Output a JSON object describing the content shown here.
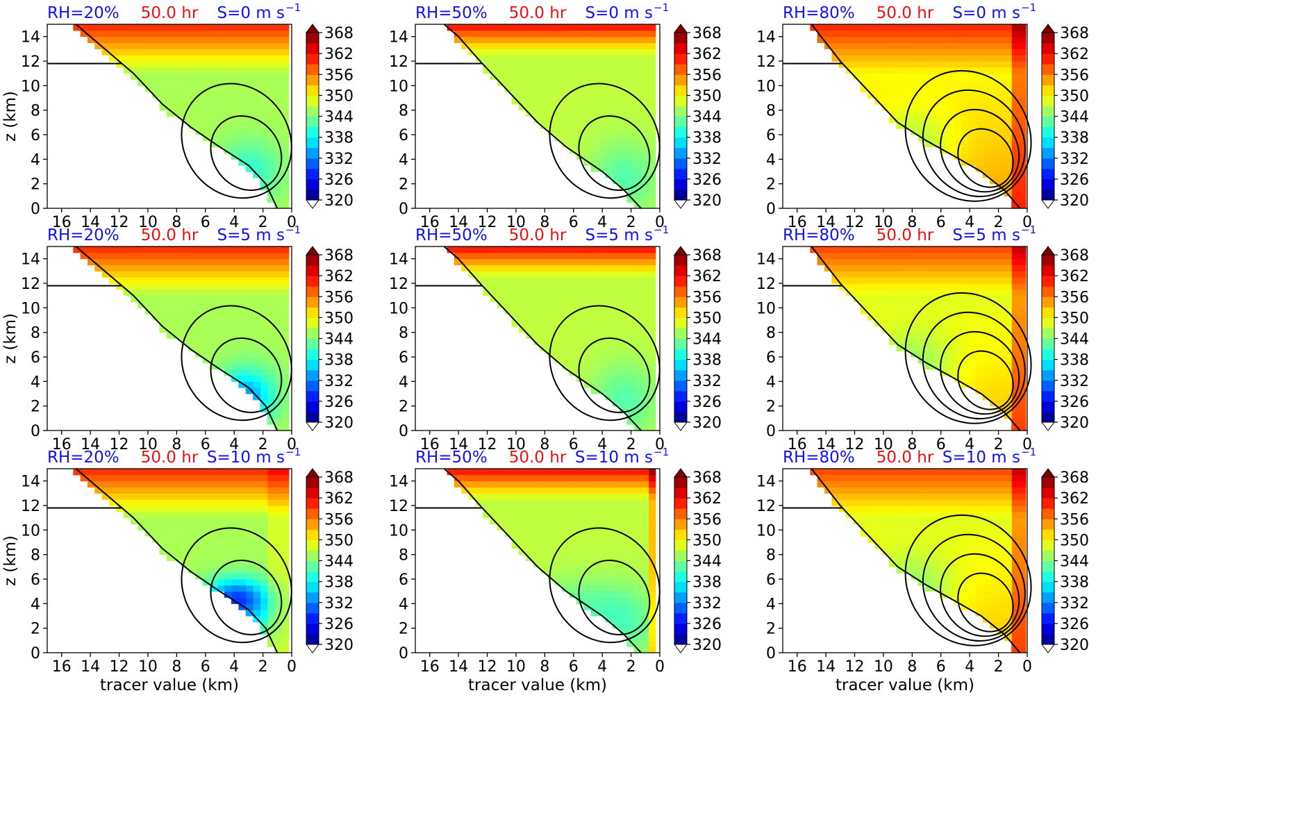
{
  "figure": {
    "colors": {
      "rh": "#1010ee",
      "time": "#ee1010",
      "shear": "#1010ee"
    },
    "colormap": "jet",
    "colorbar": {
      "ticks": [
        "368",
        "362",
        "356",
        "350",
        "344",
        "338",
        "332",
        "326",
        "320"
      ],
      "vmin": 320,
      "vmax": 368,
      "step": 3
    }
  },
  "panels": [
    {
      "rh": "RH=20%",
      "time": "50.0 hr",
      "shear": "S=0 m s",
      "shear_exp": "−1",
      "ylabel": "z (km)",
      "xlabel": "",
      "xticks": [
        "16",
        "14",
        "12",
        "10",
        "8",
        "6",
        "4",
        "2",
        "0"
      ],
      "yticks": [
        "14",
        "12",
        "10",
        "8",
        "6",
        "4",
        "2",
        "0"
      ],
      "variant": 0,
      "rows": 0
    },
    {
      "rh": "RH=50%",
      "time": "50.0 hr",
      "shear": "S=0 m s",
      "shear_exp": "−1",
      "ylabel": "",
      "xlabel": "",
      "xticks": [
        "16",
        "14",
        "12",
        "10",
        "8",
        "6",
        "4",
        "2",
        "0"
      ],
      "yticks": [
        "14",
        "12",
        "10",
        "8",
        "6",
        "4",
        "2",
        "0"
      ],
      "variant": 1,
      "rows": 0
    },
    {
      "rh": "RH=80%",
      "time": "50.0 hr",
      "shear": "S=0 m s",
      "shear_exp": "−1",
      "ylabel": "",
      "xlabel": "",
      "xticks": [
        "16",
        "14",
        "12",
        "10",
        "8",
        "6",
        "4",
        "2",
        "0"
      ],
      "yticks": [
        "14",
        "12",
        "10",
        "8",
        "6",
        "4",
        "2",
        "0"
      ],
      "variant": 2,
      "rows": 0
    },
    {
      "rh": "RH=20%",
      "time": "50.0 hr",
      "shear": "S=5 m s",
      "shear_exp": "−1",
      "ylabel": "z (km)",
      "xlabel": "",
      "xticks": [
        "16",
        "14",
        "12",
        "10",
        "8",
        "6",
        "4",
        "2",
        "0"
      ],
      "yticks": [
        "14",
        "12",
        "10",
        "8",
        "6",
        "4",
        "2",
        "0"
      ],
      "variant": 0,
      "rows": 1
    },
    {
      "rh": "RH=50%",
      "time": "50.0 hr",
      "shear": "S=5 m s",
      "shear_exp": "−1",
      "ylabel": "",
      "xlabel": "",
      "xticks": [
        "16",
        "14",
        "12",
        "10",
        "8",
        "6",
        "4",
        "2",
        "0"
      ],
      "yticks": [
        "14",
        "12",
        "10",
        "8",
        "6",
        "4",
        "2",
        "0"
      ],
      "variant": 1,
      "rows": 1
    },
    {
      "rh": "RH=80%",
      "time": "50.0 hr",
      "shear": "S=5 m s",
      "shear_exp": "−1",
      "ylabel": "",
      "xlabel": "",
      "xticks": [
        "16",
        "14",
        "12",
        "10",
        "8",
        "6",
        "4",
        "2",
        "0"
      ],
      "yticks": [
        "14",
        "12",
        "10",
        "8",
        "6",
        "4",
        "2",
        "0"
      ],
      "variant": 2,
      "rows": 1
    },
    {
      "rh": "RH=20%",
      "time": "50.0 hr",
      "shear": "S=10 m s",
      "shear_exp": "−1",
      "ylabel": "z (km)",
      "xlabel": "tracer value (km)",
      "xticks": [
        "16",
        "14",
        "12",
        "10",
        "8",
        "6",
        "4",
        "2",
        "0"
      ],
      "yticks": [
        "14",
        "12",
        "10",
        "8",
        "6",
        "4",
        "2",
        "0"
      ],
      "variant": 0,
      "rows": 2
    },
    {
      "rh": "RH=50%",
      "time": "50.0 hr",
      "shear": "S=10 m s",
      "shear_exp": "−1",
      "ylabel": "",
      "xlabel": "tracer value (km)",
      "xticks": [
        "16",
        "14",
        "12",
        "10",
        "8",
        "6",
        "4",
        "2",
        "0"
      ],
      "yticks": [
        "14",
        "12",
        "10",
        "8",
        "6",
        "4",
        "2",
        "0"
      ],
      "variant": 1,
      "rows": 2
    },
    {
      "rh": "RH=80%",
      "time": "50.0 hr",
      "shear": "S=10 m s",
      "shear_exp": "−1",
      "ylabel": "",
      "xlabel": "tracer value (km)",
      "xticks": [
        "16",
        "14",
        "12",
        "10",
        "8",
        "6",
        "4",
        "2",
        "0"
      ],
      "yticks": [
        "14",
        "12",
        "10",
        "8",
        "6",
        "4",
        "2",
        "0"
      ],
      "variant": 2,
      "rows": 2
    }
  ],
  "chart_data": [
    {
      "type": "heatmap",
      "title": "RH=20% 50.0 hr S=0 m s−1",
      "xlabel": "",
      "ylabel": "z (km)",
      "xlim": [
        17,
        0
      ],
      "ylim": [
        0,
        15
      ],
      "colorbar_range": [
        320,
        368
      ],
      "field_range_approx": [
        332,
        362
      ]
    },
    {
      "type": "heatmap",
      "title": "RH=50% 50.0 hr S=0 m s−1",
      "xlabel": "",
      "ylabel": "",
      "xlim": [
        17,
        0
      ],
      "ylim": [
        0,
        15
      ],
      "colorbar_range": [
        320,
        368
      ],
      "field_range_approx": [
        335,
        365
      ]
    },
    {
      "type": "heatmap",
      "title": "RH=80% 50.0 hr S=0 m s−1",
      "xlabel": "",
      "ylabel": "",
      "xlim": [
        17,
        0
      ],
      "ylim": [
        0,
        15
      ],
      "colorbar_range": [
        320,
        368
      ],
      "field_range_approx": [
        338,
        366
      ]
    },
    {
      "type": "heatmap",
      "title": "RH=20% 50.0 hr S=5 m s−1",
      "xlabel": "",
      "ylabel": "z (km)",
      "xlim": [
        17,
        0
      ],
      "ylim": [
        0,
        15
      ],
      "colorbar_range": [
        320,
        368
      ],
      "field_range_approx": [
        328,
        362
      ]
    },
    {
      "type": "heatmap",
      "title": "RH=50% 50.0 hr S=5 m s−1",
      "xlabel": "",
      "ylabel": "",
      "xlim": [
        17,
        0
      ],
      "ylim": [
        0,
        15
      ],
      "colorbar_range": [
        320,
        368
      ],
      "field_range_approx": [
        332,
        365
      ]
    },
    {
      "type": "heatmap",
      "title": "RH=80% 50.0 hr S=5 m s−1",
      "xlabel": "",
      "ylabel": "",
      "xlim": [
        17,
        0
      ],
      "ylim": [
        0,
        15
      ],
      "colorbar_range": [
        320,
        368
      ],
      "field_range_approx": [
        340,
        366
      ]
    },
    {
      "type": "heatmap",
      "title": "RH=20% 50.0 hr S=10 m s−1",
      "xlabel": "tracer value (km)",
      "ylabel": "z (km)",
      "xlim": [
        17,
        0
      ],
      "ylim": [
        0,
        15
      ],
      "colorbar_range": [
        320,
        368
      ],
      "field_range_approx": [
        324,
        366
      ]
    },
    {
      "type": "heatmap",
      "title": "RH=50% 50.0 hr S=10 m s−1",
      "xlabel": "tracer value (km)",
      "ylabel": "",
      "xlim": [
        17,
        0
      ],
      "ylim": [
        0,
        15
      ],
      "colorbar_range": [
        320,
        368
      ],
      "field_range_approx": [
        336,
        366
      ]
    },
    {
      "type": "heatmap",
      "title": "RH=80% 50.0 hr S=10 m s−1",
      "xlabel": "tracer value (km)",
      "ylabel": "",
      "xlim": [
        17,
        0
      ],
      "ylim": [
        0,
        15
      ],
      "colorbar_range": [
        320,
        368
      ],
      "field_range_approx": [
        340,
        366
      ]
    }
  ]
}
